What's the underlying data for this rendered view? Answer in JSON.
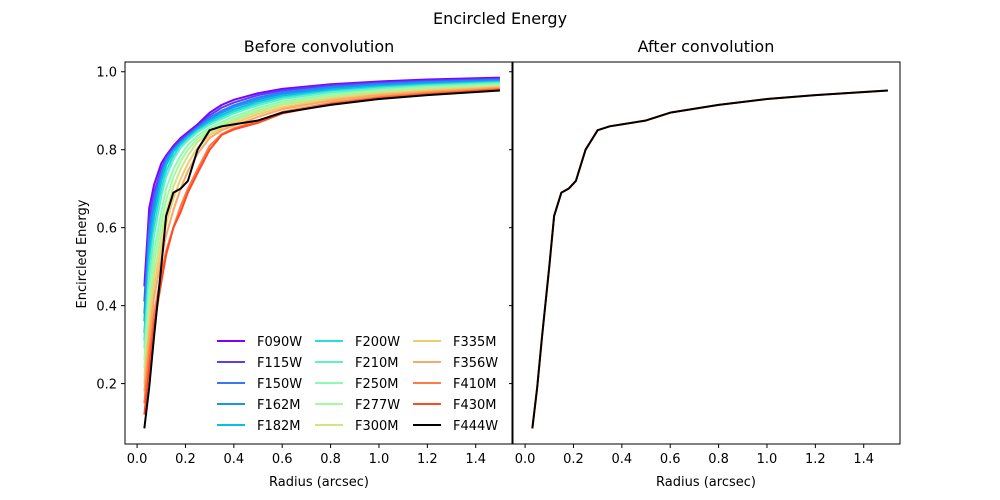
{
  "figure": {
    "title": "Encircled Energy"
  },
  "chart_data": [
    {
      "type": "line",
      "title": "Before convolution",
      "xlabel": "Radius (arcsec)",
      "ylabel": "Encircled Energy",
      "xlim": [
        -0.05,
        1.55
      ],
      "ylim": [
        0.045,
        1.025
      ],
      "xticks": [
        0.0,
        0.2,
        0.4,
        0.6,
        0.8,
        1.0,
        1.2,
        1.4
      ],
      "xticklabels": [
        "0.0",
        "0.2",
        "0.4",
        "0.6",
        "0.8",
        "1.0",
        "1.2",
        "1.4"
      ],
      "yticks": [
        0.2,
        0.4,
        0.6,
        0.8,
        1.0
      ],
      "yticklabels": [
        "0.2",
        "0.4",
        "0.6",
        "0.8",
        "1.0"
      ],
      "grid": false,
      "legend": "lower-right, 3 columns",
      "x": [
        0.03,
        0.05,
        0.07,
        0.1,
        0.12,
        0.15,
        0.18,
        0.21,
        0.25,
        0.3,
        0.35,
        0.4,
        0.5,
        0.6,
        0.8,
        1.0,
        1.2,
        1.5
      ],
      "series": [
        {
          "name": "F090W",
          "color": "#7f00ff",
          "values": [
            0.45,
            0.65,
            0.71,
            0.765,
            0.785,
            0.81,
            0.83,
            0.845,
            0.865,
            0.895,
            0.915,
            0.928,
            0.945,
            0.956,
            0.968,
            0.975,
            0.98,
            0.985
          ]
        },
        {
          "name": "F115W",
          "color": "#5a3ef5",
          "values": [
            0.41,
            0.62,
            0.69,
            0.75,
            0.78,
            0.805,
            0.825,
            0.84,
            0.86,
            0.888,
            0.908,
            0.921,
            0.94,
            0.952,
            0.965,
            0.972,
            0.977,
            0.982
          ]
        },
        {
          "name": "F150W",
          "color": "#3677f9",
          "values": [
            0.38,
            0.59,
            0.67,
            0.74,
            0.775,
            0.8,
            0.82,
            0.837,
            0.857,
            0.882,
            0.9,
            0.914,
            0.934,
            0.947,
            0.961,
            0.969,
            0.974,
            0.979
          ]
        },
        {
          "name": "F162M",
          "color": "#1995f2",
          "values": [
            0.36,
            0.57,
            0.65,
            0.73,
            0.77,
            0.798,
            0.818,
            0.835,
            0.855,
            0.878,
            0.895,
            0.909,
            0.929,
            0.943,
            0.958,
            0.966,
            0.972,
            0.977
          ]
        },
        {
          "name": "F182M",
          "color": "#0ac0e2",
          "values": [
            0.33,
            0.54,
            0.63,
            0.72,
            0.76,
            0.795,
            0.815,
            0.832,
            0.852,
            0.873,
            0.889,
            0.903,
            0.924,
            0.938,
            0.954,
            0.963,
            0.969,
            0.975
          ]
        },
        {
          "name": "F200W",
          "color": "#2adddd",
          "values": [
            0.31,
            0.51,
            0.6,
            0.7,
            0.745,
            0.785,
            0.81,
            0.828,
            0.848,
            0.868,
            0.884,
            0.898,
            0.919,
            0.934,
            0.95,
            0.96,
            0.966,
            0.973
          ]
        },
        {
          "name": "F210M",
          "color": "#5ff1c9",
          "values": [
            0.29,
            0.48,
            0.58,
            0.68,
            0.73,
            0.775,
            0.805,
            0.824,
            0.845,
            0.864,
            0.879,
            0.893,
            0.914,
            0.93,
            0.947,
            0.957,
            0.964,
            0.971
          ]
        },
        {
          "name": "F250M",
          "color": "#8efbb0",
          "values": [
            0.26,
            0.44,
            0.54,
            0.64,
            0.7,
            0.75,
            0.785,
            0.812,
            0.836,
            0.856,
            0.871,
            0.885,
            0.907,
            0.924,
            0.942,
            0.953,
            0.961,
            0.968
          ]
        },
        {
          "name": "F277W",
          "color": "#a6f9a0",
          "values": [
            0.24,
            0.41,
            0.51,
            0.61,
            0.67,
            0.73,
            0.77,
            0.8,
            0.828,
            0.85,
            0.865,
            0.879,
            0.902,
            0.919,
            0.938,
            0.95,
            0.958,
            0.966
          ]
        },
        {
          "name": "F300M",
          "color": "#cbe884",
          "values": [
            0.22,
            0.38,
            0.48,
            0.58,
            0.64,
            0.705,
            0.75,
            0.785,
            0.82,
            0.845,
            0.86,
            0.874,
            0.897,
            0.915,
            0.934,
            0.947,
            0.955,
            0.963
          ]
        },
        {
          "name": "F335M",
          "color": "#f0cc6e",
          "values": [
            0.2,
            0.35,
            0.45,
            0.55,
            0.61,
            0.675,
            0.725,
            0.765,
            0.805,
            0.838,
            0.855,
            0.868,
            0.891,
            0.909,
            0.93,
            0.943,
            0.952,
            0.961
          ]
        },
        {
          "name": "F356W",
          "color": "#fba865",
          "values": [
            0.18,
            0.32,
            0.42,
            0.52,
            0.58,
            0.645,
            0.7,
            0.745,
            0.79,
            0.83,
            0.85,
            0.862,
            0.884,
            0.904,
            0.926,
            0.94,
            0.949,
            0.959
          ]
        },
        {
          "name": "F410M",
          "color": "#ff7a45",
          "values": [
            0.15,
            0.28,
            0.38,
            0.48,
            0.54,
            0.6,
            0.655,
            0.7,
            0.75,
            0.81,
            0.84,
            0.855,
            0.874,
            0.897,
            0.92,
            0.935,
            0.945,
            0.956
          ]
        },
        {
          "name": "F430M",
          "color": "#ff4a24",
          "values": [
            0.12,
            0.24,
            0.35,
            0.46,
            0.53,
            0.6,
            0.64,
            0.69,
            0.74,
            0.8,
            0.838,
            0.852,
            0.869,
            0.893,
            0.917,
            0.932,
            0.942,
            0.954
          ]
        },
        {
          "name": "F444W",
          "color": "#000000",
          "values": [
            0.085,
            0.19,
            0.32,
            0.5,
            0.63,
            0.69,
            0.7,
            0.72,
            0.8,
            0.85,
            0.86,
            0.865,
            0.875,
            0.895,
            0.915,
            0.93,
            0.94,
            0.952
          ]
        }
      ]
    },
    {
      "type": "line",
      "title": "After convolution",
      "xlabel": "Radius (arcsec)",
      "xlim": [
        -0.05,
        1.55
      ],
      "ylim": [
        0.045,
        1.025
      ],
      "xticks": [
        0.0,
        0.2,
        0.4,
        0.6,
        0.8,
        1.0,
        1.2,
        1.4
      ],
      "xticklabels": [
        "0.0",
        "0.2",
        "0.4",
        "0.6",
        "0.8",
        "1.0",
        "1.2",
        "1.4"
      ],
      "yticks": [
        0.2,
        0.4,
        0.6,
        0.8,
        1.0
      ],
      "ytick_labels_shown": false,
      "grid": false,
      "x": [
        0.03,
        0.05,
        0.07,
        0.1,
        0.12,
        0.15,
        0.18,
        0.21,
        0.25,
        0.3,
        0.35,
        0.4,
        0.5,
        0.6,
        0.8,
        1.0,
        1.2,
        1.5
      ],
      "series": [
        {
          "color": "#ff4a24",
          "values": [
            0.085,
            0.19,
            0.32,
            0.5,
            0.63,
            0.69,
            0.7,
            0.72,
            0.8,
            0.85,
            0.86,
            0.865,
            0.875,
            0.895,
            0.915,
            0.93,
            0.94,
            0.952
          ]
        },
        {
          "color": "#000000",
          "values": [
            0.085,
            0.19,
            0.32,
            0.5,
            0.63,
            0.69,
            0.7,
            0.72,
            0.8,
            0.85,
            0.86,
            0.865,
            0.875,
            0.895,
            0.915,
            0.93,
            0.94,
            0.952
          ]
        }
      ]
    }
  ]
}
